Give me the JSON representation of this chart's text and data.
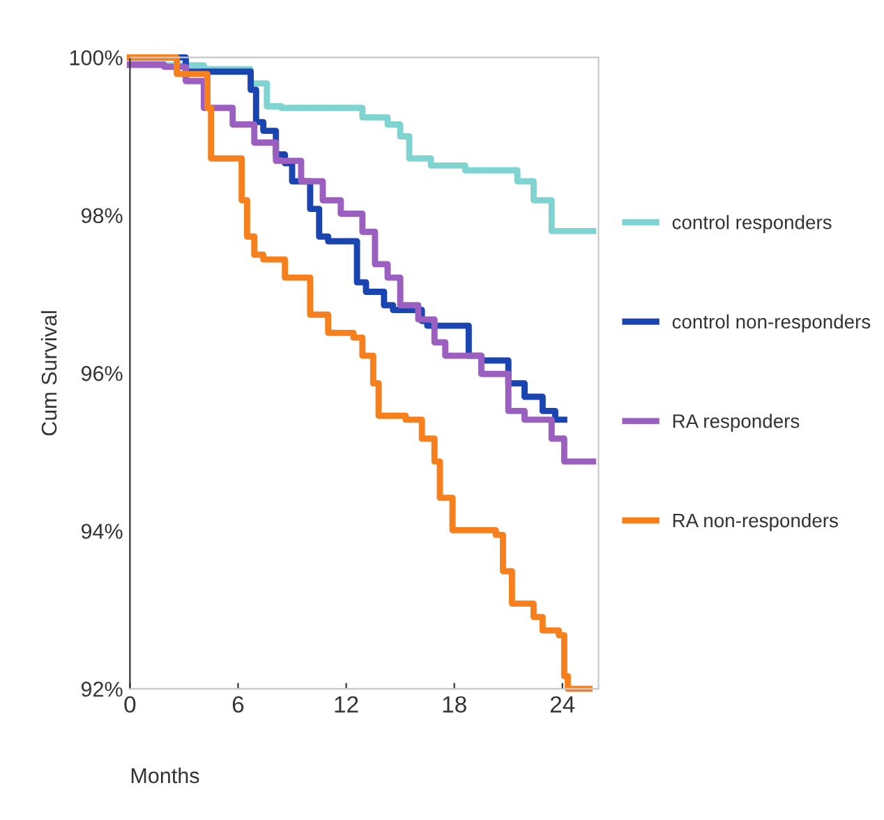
{
  "chart_data": {
    "type": "step",
    "xlabel": "Months",
    "ylabel": "Cum Survival",
    "xlim": [
      0,
      26
    ],
    "xticks": [
      0,
      6,
      12,
      18,
      24
    ],
    "ylim": [
      92,
      100
    ],
    "yticks": [
      {
        "value": 92,
        "label": "92%"
      },
      {
        "value": 94,
        "label": "94%"
      },
      {
        "value": 96,
        "label": "96%"
      },
      {
        "value": 98,
        "label": "98%"
      },
      {
        "value": 100,
        "label": "100%"
      }
    ],
    "grid": false,
    "legend": "right",
    "line_style": "solid",
    "marker": "none",
    "series": [
      {
        "name": "control responders",
        "color": "#7fd3d0",
        "x": [
          0,
          4.1,
          6.7,
          7.6,
          8.4,
          12.2,
          12.9,
          14.3,
          15.0,
          15.5,
          16.7,
          18.6,
          20.5,
          21.5,
          22.4,
          23.4,
          25.7
        ],
        "values": [
          99.9,
          99.85,
          99.67,
          99.38,
          99.36,
          99.36,
          99.24,
          99.15,
          99.0,
          98.72,
          98.63,
          98.57,
          98.57,
          98.43,
          98.19,
          97.8,
          97.8
        ]
      },
      {
        "name": "control non-responders",
        "color": "#1a44b0",
        "x": [
          0,
          3.1,
          6.7,
          7.0,
          7.4,
          8.1,
          8.6,
          9.0,
          10.0,
          10.5,
          11.0,
          12.6,
          13.1,
          14.1,
          14.6,
          16.2,
          16.5,
          18.8,
          19.5,
          21.0,
          21.9,
          22.9,
          23.6,
          24.1
        ],
        "values": [
          100,
          99.82,
          99.59,
          99.18,
          99.07,
          98.77,
          98.66,
          98.43,
          98.08,
          97.73,
          97.67,
          97.15,
          97.03,
          96.86,
          96.8,
          96.66,
          96.6,
          96.22,
          96.16,
          95.87,
          95.7,
          95.52,
          95.41,
          95.41
        ]
      },
      {
        "name": "RA responders",
        "color": "#9b5fc0",
        "x": [
          0,
          1.9,
          3.1,
          4.1,
          5.7,
          6.9,
          8.1,
          9.5,
          10.7,
          11.7,
          12.9,
          13.6,
          14.3,
          15.0,
          16.0,
          16.9,
          17.5,
          19.5,
          21.0,
          21.9,
          23.4,
          24.1,
          25.7
        ],
        "values": [
          99.91,
          99.88,
          99.7,
          99.36,
          99.15,
          98.92,
          98.69,
          98.43,
          98.19,
          98.02,
          97.79,
          97.38,
          97.21,
          96.86,
          96.68,
          96.39,
          96.22,
          95.99,
          95.52,
          95.41,
          95.17,
          94.88,
          94.88
        ]
      },
      {
        "name": "RA non-responders",
        "color": "#f7801e",
        "x": [
          0,
          2.6,
          4.3,
          4.5,
          4.8,
          6.2,
          6.5,
          6.9,
          7.4,
          8.6,
          8.8,
          10.0,
          11.0,
          12.4,
          12.9,
          13.5,
          13.8,
          15.3,
          16.2,
          16.9,
          17.2,
          17.9,
          20.3,
          20.7,
          21.2,
          22.4,
          22.9,
          23.8,
          24.1,
          24.3,
          25.5
        ],
        "values": [
          100,
          99.79,
          99.36,
          98.72,
          98.72,
          98.19,
          97.73,
          97.5,
          97.44,
          97.21,
          97.21,
          96.74,
          96.51,
          96.45,
          96.22,
          95.87,
          95.46,
          95.41,
          95.17,
          94.88,
          94.42,
          94.01,
          93.95,
          93.49,
          93.08,
          92.91,
          92.74,
          92.68,
          92.16,
          92.0,
          92.0
        ]
      }
    ]
  }
}
